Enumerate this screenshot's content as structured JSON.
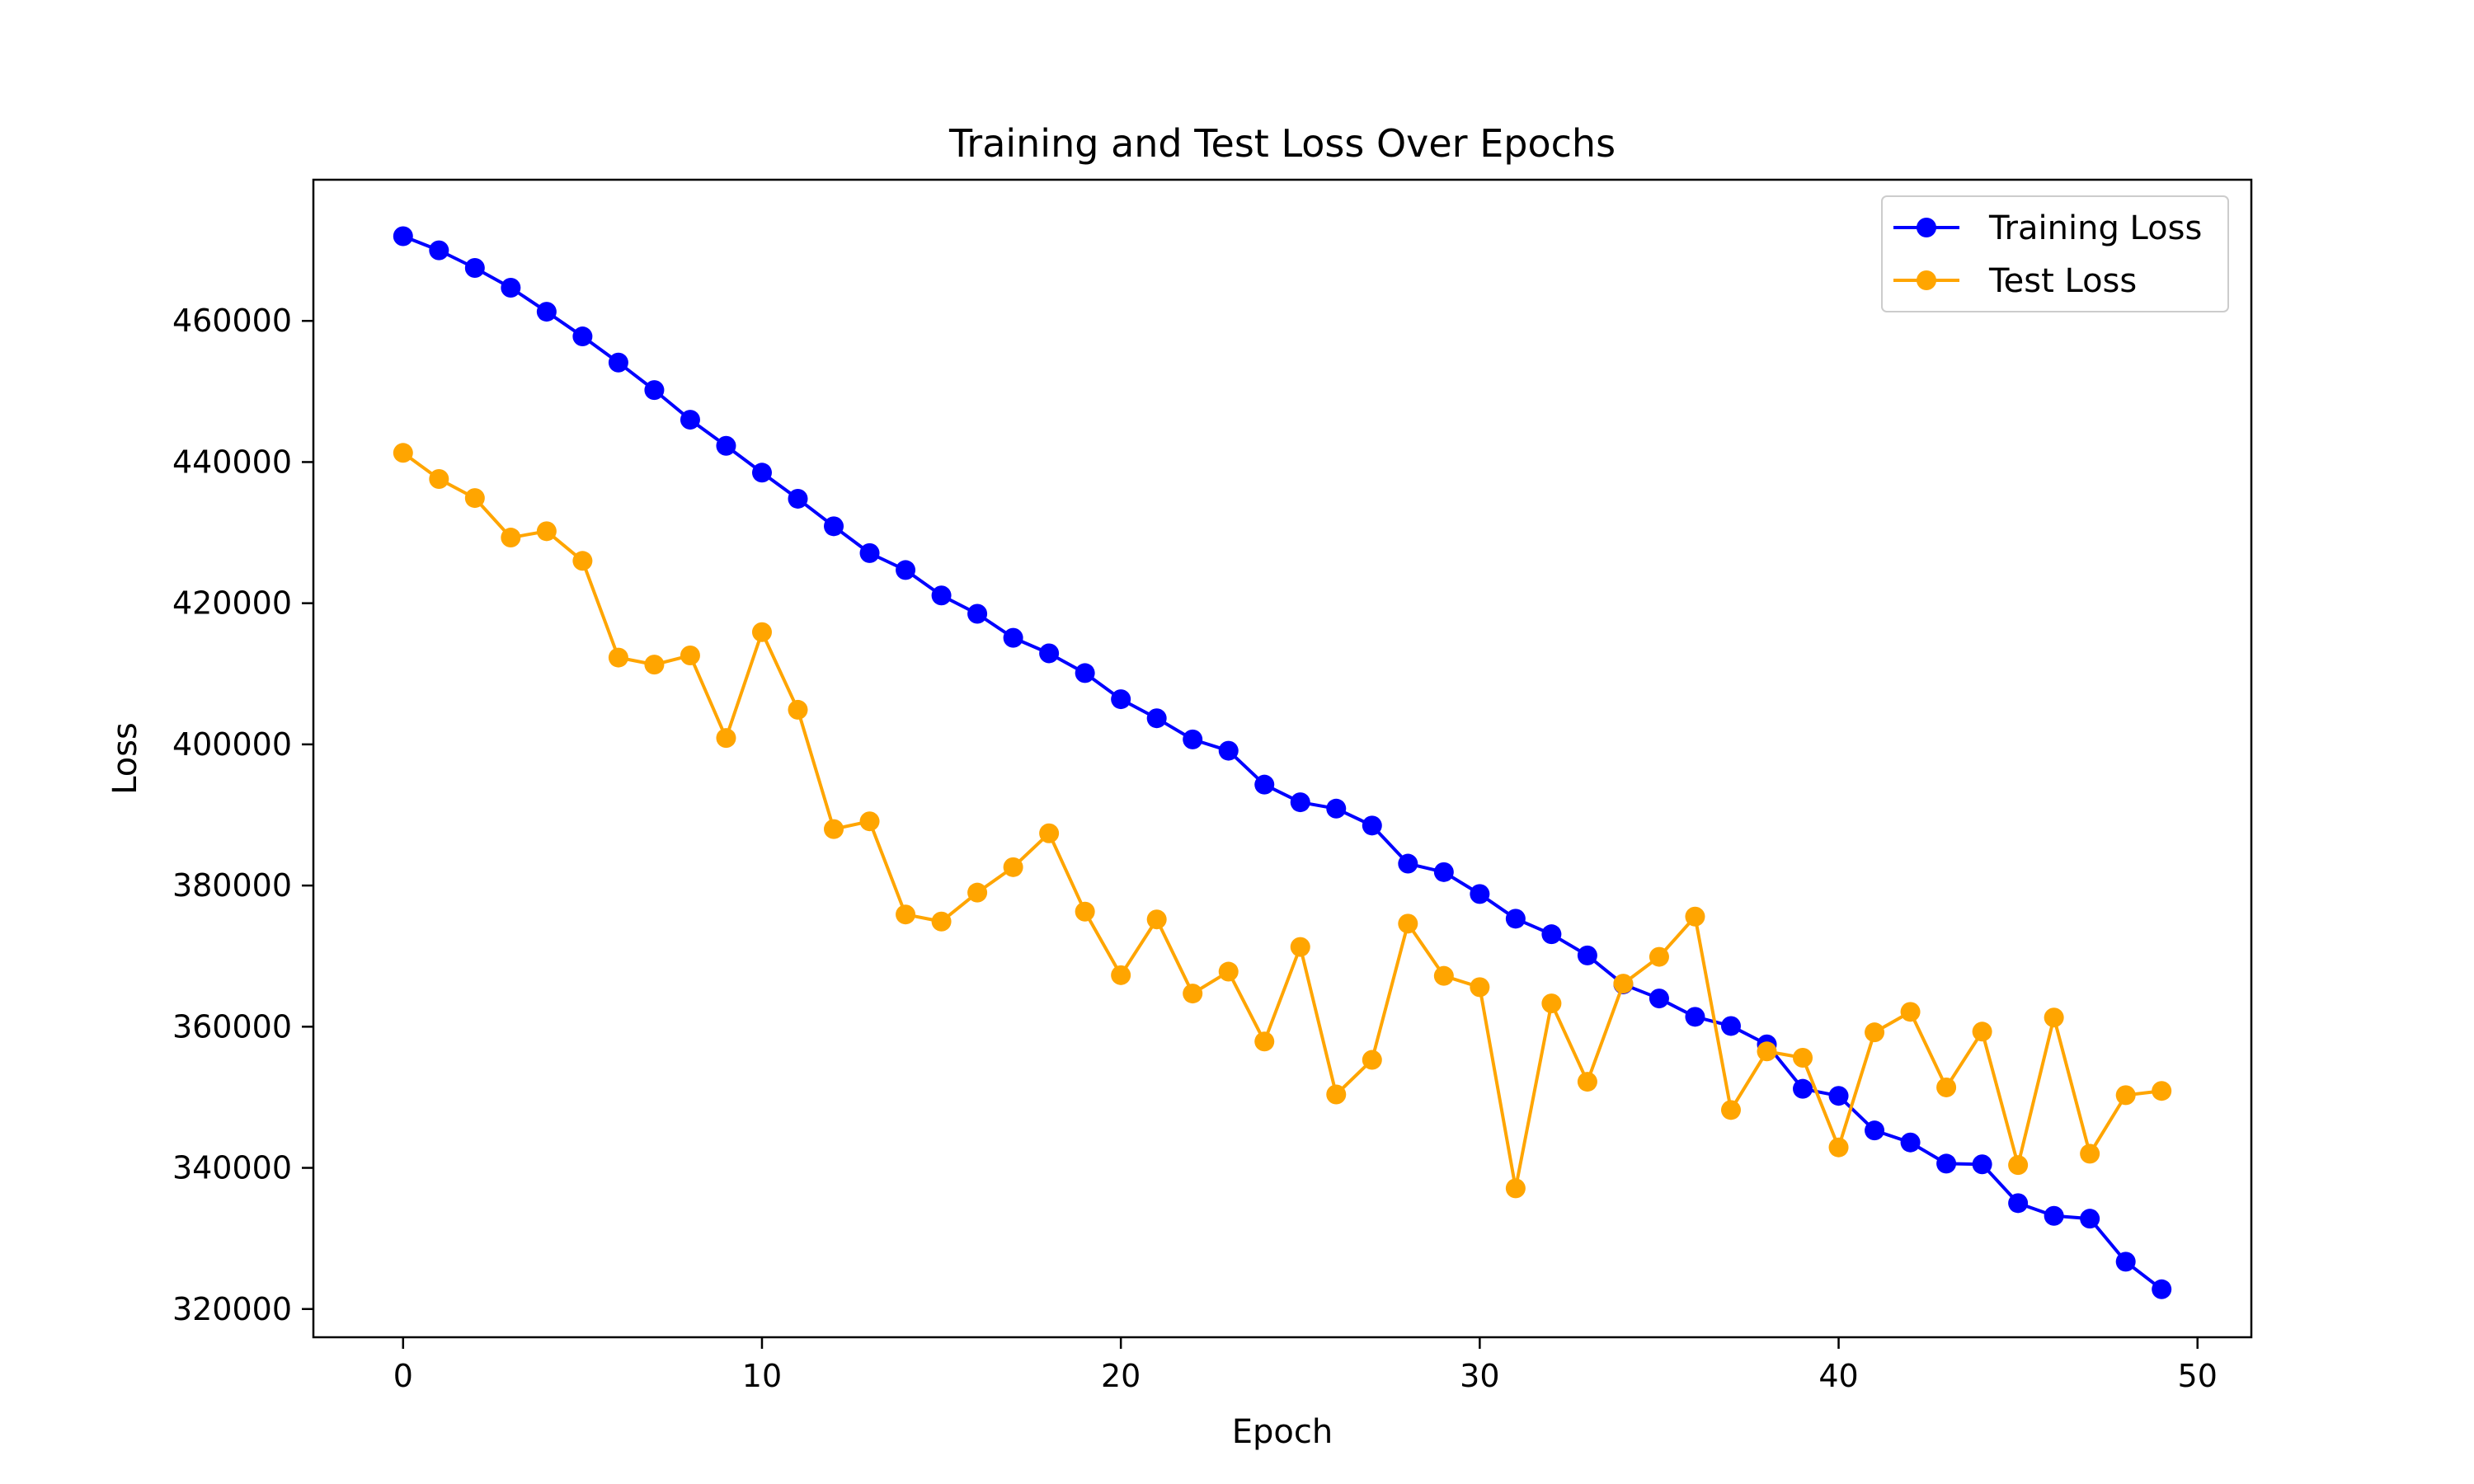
{
  "chart_data": {
    "type": "line",
    "title": "Training and Test Loss Over Epochs",
    "xlabel": "Epoch",
    "ylabel": "Loss",
    "xlim": [
      -2.5,
      51.5
    ],
    "ylim": [
      316000,
      480000
    ],
    "x_ticks": [
      0,
      10,
      20,
      30,
      40,
      50
    ],
    "y_ticks": [
      320000,
      340000,
      360000,
      380000,
      400000,
      420000,
      440000,
      460000
    ],
    "grid": false,
    "legend_position": "top-right",
    "x": [
      0,
      1,
      2,
      3,
      4,
      5,
      6,
      7,
      8,
      9,
      10,
      11,
      12,
      13,
      14,
      15,
      16,
      17,
      18,
      19,
      20,
      21,
      22,
      23,
      24,
      25,
      26,
      27,
      28,
      29,
      30,
      31,
      32,
      33,
      34,
      35,
      36,
      37,
      38,
      39,
      40,
      41,
      42,
      43,
      44,
      45,
      46,
      47,
      48,
      49
    ],
    "series": [
      {
        "name": "Training Loss",
        "color": "#0000ff",
        "values": [
          472000,
          470000,
          467500,
          464700,
          461300,
          457800,
          454100,
          450200,
          446000,
          442300,
          438500,
          434800,
          430900,
          427100,
          424700,
          421100,
          418500,
          415100,
          412900,
          410100,
          406400,
          403700,
          400700,
          399100,
          394300,
          391800,
          390900,
          388500,
          383100,
          381900,
          378800,
          375300,
          373100,
          370100,
          366000,
          364000,
          361400,
          360100,
          357500,
          351200,
          350200,
          345300,
          343600,
          340600,
          340500,
          335000,
          333200,
          332800,
          326700,
          322800
        ]
      },
      {
        "name": "Test Loss",
        "color": "#ffa500",
        "values": [
          441300,
          437600,
          434900,
          429300,
          430200,
          426000,
          412300,
          411300,
          412600,
          400900,
          415900,
          404900,
          388000,
          389100,
          375900,
          374900,
          379000,
          382600,
          387400,
          376300,
          367300,
          375200,
          364700,
          367800,
          357900,
          371300,
          350400,
          355300,
          374600,
          367200,
          365600,
          337100,
          363300,
          352200,
          366100,
          369900,
          375600,
          348200,
          356500,
          355600,
          342900,
          359200,
          362100,
          351400,
          359300,
          340400,
          361300,
          342000,
          350300,
          350900
        ]
      }
    ]
  }
}
